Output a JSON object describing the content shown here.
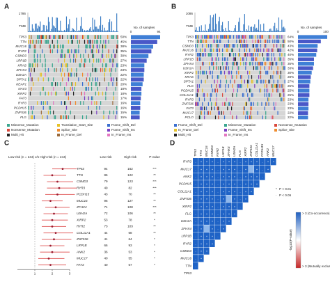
{
  "panels": {
    "A": {
      "label": "A",
      "tmb_label": "TMB",
      "tmb_max": "1786",
      "samples_label": "No. of samples",
      "samples_min": "0",
      "samples_max": "94",
      "genes": [
        "TP53",
        "TTN",
        "MUC16",
        "RYR2",
        "CSMD3",
        "LRP1B",
        "KRAS",
        "ZFHX4",
        "USH2A",
        "SPTA1",
        "KEAP1",
        "NAV3",
        "XIRP2",
        "FAT3",
        "RYR3",
        "PCDH15",
        "ZNF536",
        "FLG"
      ],
      "values": [
        50,
        45,
        38,
        35,
        30,
        27,
        23,
        23,
        22,
        22,
        20,
        18,
        18,
        17,
        16,
        16,
        15,
        15
      ],
      "value_labels": [
        "50%",
        "45%",
        "38%",
        "35%",
        "30%",
        "27%",
        "23%",
        "23%",
        "22%",
        "22%",
        "20%",
        "18%",
        "18%",
        "17%",
        "16%",
        "16%",
        "15%",
        "15%"
      ],
      "legend": [
        {
          "name": "Missense_Mutation",
          "color": "#3aa68f"
        },
        {
          "name": "Translation_Start_Site",
          "color": "#e6c229"
        },
        {
          "name": "Frame_Shift_Del",
          "color": "#3b6fd0"
        },
        {
          "name": "Nonsense_Mutation",
          "color": "#d9473b"
        },
        {
          "name": "Splice_Site",
          "color": "#f08c2e"
        },
        {
          "name": "Frame_Shift_Ins",
          "color": "#7b3fc4"
        },
        {
          "name": "Multi_Hit",
          "color": "#222222"
        },
        {
          "name": "In_Frame_Del",
          "color": "#9c6b3c"
        },
        {
          "name": "In_Frame_Ins",
          "color": "#e377c2"
        }
      ]
    },
    "B": {
      "label": "B",
      "tmb_label": "TMB",
      "tmb_max": "1086",
      "samples_label": "No. of samples",
      "samples_min": "0",
      "samples_max": "100",
      "genes": [
        "TP53",
        "TTN",
        "CSMD3",
        "MUC16",
        "RYR2",
        "LRP1B",
        "ZFHX4",
        "USH2A",
        "XIRP2",
        "KRAS",
        "SPTA1",
        "FLG",
        "PCDH15",
        "COL11A1",
        "RYR3",
        "ZNF536",
        "FAT3",
        "MUC17",
        "PCLO"
      ],
      "values": [
        64,
        50,
        43,
        42,
        40,
        35,
        35,
        33,
        30,
        28,
        27,
        25,
        25,
        25,
        23,
        23,
        23,
        22,
        22
      ],
      "value_labels": [
        "64%",
        "50%",
        "43%",
        "42%",
        "40%",
        "35%",
        "35%",
        "33%",
        "30%",
        "28%",
        "27%",
        "25%",
        "25%",
        "25%",
        "23%",
        "23%",
        "23%",
        "22%",
        "22%"
      ],
      "legend": [
        {
          "name": "Frame_Shift_Del",
          "color": "#3b6fd0"
        },
        {
          "name": "Missense_Mutation",
          "color": "#3aa68f"
        },
        {
          "name": "Nonsense_Mutation",
          "color": "#d9473b"
        },
        {
          "name": "In_Frame_Del",
          "color": "#e6c229"
        },
        {
          "name": "Frame_Shift_Ins",
          "color": "#7b3fc4"
        },
        {
          "name": "Splice_Site",
          "color": "#f08c2e"
        },
        {
          "name": "Multi_Hit",
          "color": "#222222"
        },
        {
          "name": "In_Frame_Ins",
          "color": "#e377c2"
        }
      ]
    },
    "C": {
      "label": "C",
      "title": "Low-risk (n = 244) v/s High-risk (n = 244)",
      "headers": [
        "Low-risk",
        "High-risk",
        "P-value"
      ],
      "xlim": [
        0,
        3
      ],
      "xticks": [
        1,
        2,
        3
      ],
      "ref_line": 1,
      "rows": [
        {
          "gene": "TP53",
          "low": 94,
          "high": 162,
          "p": "***",
          "or": 2.6,
          "lo": 2.0,
          "hi": 3.4
        },
        {
          "gene": "TTN",
          "low": 86,
          "high": 122,
          "p": "**",
          "or": 2.0,
          "lo": 1.5,
          "hi": 2.8
        },
        {
          "gene": "CSMD3",
          "low": 79,
          "high": 123,
          "p": "***",
          "or": 2.3,
          "lo": 1.7,
          "hi": 3.2
        },
        {
          "gene": "RYR3",
          "low": 49,
          "high": 82,
          "p": "***",
          "or": 2.4,
          "lo": 1.7,
          "hi": 3.4
        },
        {
          "gene": "PCDH15",
          "low": 43,
          "high": 70,
          "p": "**",
          "or": 2.3,
          "lo": 1.6,
          "hi": 3.3
        },
        {
          "gene": "MUC16",
          "low": 96,
          "high": 127,
          "p": "**",
          "or": 1.9,
          "lo": 1.4,
          "hi": 2.6
        },
        {
          "gene": "ZFHX4",
          "low": 71,
          "high": 108,
          "p": "***",
          "or": 2.2,
          "lo": 1.6,
          "hi": 3.0
        },
        {
          "gene": "USH2A",
          "low": 72,
          "high": 106,
          "p": "**",
          "or": 2.1,
          "lo": 1.5,
          "hi": 2.9
        },
        {
          "gene": "XIRP2",
          "low": 53,
          "high": 78,
          "p": "*",
          "or": 2.0,
          "lo": 1.4,
          "hi": 2.9
        },
        {
          "gene": "RYR2",
          "low": 73,
          "high": 103,
          "p": "**",
          "or": 2.0,
          "lo": 1.4,
          "hi": 2.8
        },
        {
          "gene": "COL11A1",
          "low": 44,
          "high": 68,
          "p": "**",
          "or": 2.2,
          "lo": 1.5,
          "hi": 3.2
        },
        {
          "gene": "ZNF536",
          "low": 41,
          "high": 64,
          "p": "*",
          "or": 2.1,
          "lo": 1.4,
          "hi": 3.1
        },
        {
          "gene": "LRP1B",
          "low": 66,
          "high": 93,
          "p": "*",
          "or": 1.9,
          "lo": 1.3,
          "hi": 2.7
        },
        {
          "gene": "ANK2",
          "low": 36,
          "high": 53,
          "p": "*",
          "or": 2.0,
          "lo": 1.3,
          "hi": 3.0
        },
        {
          "gene": "MUC17",
          "low": 40,
          "high": 55,
          "p": "*",
          "or": 1.8,
          "lo": 1.2,
          "hi": 2.7
        },
        {
          "gene": "FAT3",
          "low": 40,
          "high": 57,
          "p": "*",
          "or": 1.9,
          "lo": 1.2,
          "hi": 2.8
        }
      ]
    },
    "D": {
      "label": "D",
      "genes": [
        "RYR3",
        "MUC17",
        "ANK2",
        "PCDH15",
        "COL11A1",
        "ZNF536",
        "XIRP2",
        "FLG",
        "USH2A",
        "ZFHX4",
        "LRP1B",
        "RYR2",
        "CSMD3",
        "MUC16",
        "TTN",
        "TP53"
      ],
      "scale_title": "-log10(P-value)",
      "high_label": "> 3 (Co-occurence)",
      "low_label": "> 3 (Mutually exclusive)",
      "legend": [
        {
          "symbol": "*",
          "label": "P < 0.01"
        },
        {
          "symbol": "·",
          "label": "P < 0.05"
        }
      ]
    }
  }
}
